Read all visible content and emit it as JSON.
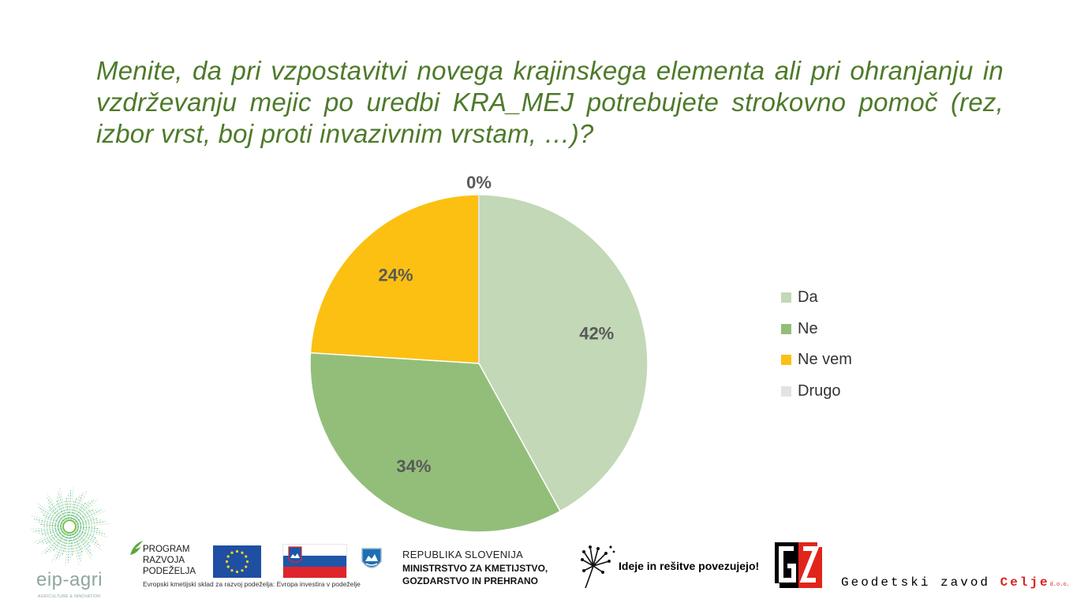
{
  "title": "Menite, da pri vzpostavitvi novega krajinskega elementa ali pri ohranjanju in vzdrževanju mejic po uredbi KRA_MEJ potrebujete strokovno pomoč (rez, izbor vrst, boj proti invazivnim vrstam, …)?",
  "chart_data": {
    "type": "pie",
    "categories": [
      "Da",
      "Ne",
      "Ne vem",
      "Drugo"
    ],
    "values": [
      42,
      34,
      24,
      0
    ],
    "labels": [
      "42%",
      "34%",
      "24%",
      "0%"
    ],
    "colors": [
      "#c2d8b6",
      "#93be7a",
      "#fbc012",
      "#e3e3e3"
    ],
    "legend_position": "right"
  },
  "footer": {
    "eip_agri": "eip-agri",
    "eip_agri_sub": "AGRICULTURE & INNOVATION",
    "program_line1": "PROGRAM",
    "program_line2": "RAZVOJA",
    "program_line3": "PODEŽELJA",
    "program_sub": "Evropski kmetijski sklad za razvoj podeželja: Evropa investira v podeželje",
    "republika": "REPUBLIKA SLOVENIJA",
    "ministry_line1": "MINISTRSTVO ZA KMETIJSTVO,",
    "ministry_line2": "GOZDARSTVO IN PREHRANO",
    "ideje": "Ideje in rešitve povezujejo!",
    "gz_name": "Geodetski zavod",
    "gz_city": "Celje",
    "gz_suffix": "d.o.o."
  },
  "icons": [
    "eip-agri-logo-icon",
    "program-razvoja-leaf-icon",
    "eu-flag-icon",
    "slovenia-flag-icon",
    "slovenia-coat-of-arms-icon",
    "dandelion-icon",
    "gz-logo-icon"
  ]
}
